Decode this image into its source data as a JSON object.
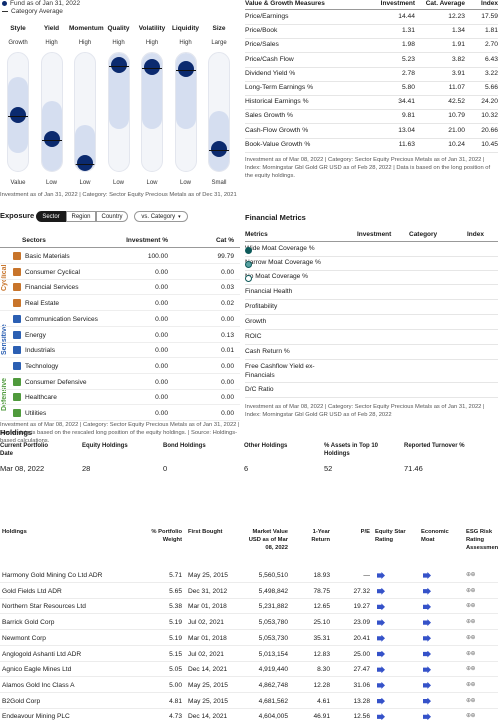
{
  "style_box": {
    "legend": {
      "fund_label": "Fund as of Jan 31, 2022",
      "category_label": "Category Average"
    },
    "factors": [
      {
        "name": "Style",
        "top": "Growth",
        "bottom": "Value",
        "level": 0.52
      },
      {
        "name": "Yield",
        "top": "High",
        "bottom": "Low",
        "level": 0.72
      },
      {
        "name": "Momentum",
        "top": "High",
        "bottom": "Low",
        "level": 0.92
      },
      {
        "name": "Quality",
        "top": "High",
        "bottom": "Low",
        "level": 0.1
      },
      {
        "name": "Volatility",
        "top": "High",
        "bottom": "Low",
        "level": 0.12
      },
      {
        "name": "Liquidity",
        "top": "High",
        "bottom": "Low",
        "level": 0.13
      },
      {
        "name": "Size",
        "top": "Large",
        "bottom": "Small",
        "level": 0.8
      }
    ],
    "caption": "Investment as of Jan 31, 2022 | Category: Sector Equity Precious Metals as of Dec 31, 2021"
  },
  "value_growth": {
    "headers": {
      "measure": "Value & Growth Measures",
      "investment": "Investment",
      "category": "Cat. Average",
      "index": "Index"
    },
    "rows": [
      {
        "label": "Price/Earnings",
        "inv": "14.44",
        "cat": "12.23",
        "idx": "17.59"
      },
      {
        "label": "Price/Book",
        "inv": "1.31",
        "cat": "1.34",
        "idx": "1.81"
      },
      {
        "label": "Price/Sales",
        "inv": "1.98",
        "cat": "1.91",
        "idx": "2.70"
      },
      {
        "label": "Price/Cash Flow",
        "inv": "5.23",
        "cat": "3.82",
        "idx": "6.43"
      },
      {
        "label": "Dividend Yield %",
        "inv": "2.78",
        "cat": "3.91",
        "idx": "3.22"
      },
      {
        "label": "Long-Term Earnings %",
        "inv": "5.80",
        "cat": "11.07",
        "idx": "5.66"
      },
      {
        "label": "Historical Earnings %",
        "inv": "34.41",
        "cat": "42.52",
        "idx": "24.20"
      },
      {
        "label": "Sales Growth %",
        "inv": "9.81",
        "cat": "10.79",
        "idx": "10.32"
      },
      {
        "label": "Cash-Flow Growth %",
        "inv": "13.04",
        "cat": "21.00",
        "idx": "20.66"
      },
      {
        "label": "Book-Value Growth %",
        "inv": "11.63",
        "cat": "10.24",
        "idx": "10.45"
      }
    ],
    "caption": "Investment as of Mar 08, 2022 | Category: Sector Equity Precious Metals as of Jan 31, 2022 | Index: Morningstar Gbl Gold GR USD as of Feb 28, 2022 | Data is based on the long position of the equity holdings."
  },
  "exposure": {
    "title": "Exposure",
    "tabs": [
      "Sector",
      "Region",
      "Country"
    ],
    "compare": "vs. Category",
    "headers": {
      "sectors": "Sectors",
      "investment": "Investment %",
      "category": "Cat %"
    },
    "groups": [
      "Cyclical",
      "Sensitive",
      "Defensive"
    ],
    "rows": [
      {
        "name": "Basic Materials",
        "inv": "100.00",
        "cat": "99.79",
        "color": "#c8742a"
      },
      {
        "name": "Consumer Cyclical",
        "inv": "0.00",
        "cat": "0.00",
        "color": "#c8742a"
      },
      {
        "name": "Financial Services",
        "inv": "0.00",
        "cat": "0.03",
        "color": "#c8742a"
      },
      {
        "name": "Real Estate",
        "inv": "0.00",
        "cat": "0.02",
        "color": "#c8742a"
      },
      {
        "name": "Communication Services",
        "inv": "0.00",
        "cat": "0.00",
        "color": "#2b5fb3"
      },
      {
        "name": "Energy",
        "inv": "0.00",
        "cat": "0.13",
        "color": "#2b5fb3"
      },
      {
        "name": "Industrials",
        "inv": "0.00",
        "cat": "0.01",
        "color": "#2b5fb3"
      },
      {
        "name": "Technology",
        "inv": "0.00",
        "cat": "0.00",
        "color": "#2b5fb3"
      },
      {
        "name": "Consumer Defensive",
        "inv": "0.00",
        "cat": "0.00",
        "color": "#4f9a3c"
      },
      {
        "name": "Healthcare",
        "inv": "0.00",
        "cat": "0.00",
        "color": "#4f9a3c"
      },
      {
        "name": "Utilities",
        "inv": "0.00",
        "cat": "0.00",
        "color": "#4f9a3c"
      }
    ],
    "caption": "Investment as of Mar 08, 2022 | Category: Sector Equity Precious Metals as of Jan 31, 2022 | Sector data is based on the rescaled long position of the equity holdings. | Source: Holdings-based calculations."
  },
  "financial_metrics": {
    "title": "Financial Metrics",
    "headers": {
      "metrics": "Metrics",
      "investment": "Investment",
      "category": "Category",
      "index": "Index"
    },
    "rows": [
      {
        "label": "Wide Moat Coverage %",
        "dot": "#0e5b5b"
      },
      {
        "label": "Narrow Moat Coverage %",
        "dot": "#5aa3a3"
      },
      {
        "label": "No Moat Coverage %",
        "dot": "#ffffff"
      },
      {
        "label": "Financial Health"
      },
      {
        "label": "Profitability"
      },
      {
        "label": "Growth"
      },
      {
        "label": "ROIC"
      },
      {
        "label": "Cash Return %"
      },
      {
        "label": "Free Cashflow Yield ex-Financials"
      },
      {
        "label": "D/C Ratio"
      }
    ],
    "caption": "Investment as of Mar 08, 2022 | Category: Sector Equity Precious Metals as of Jan 31, 2022 | Index: Morningstar Gbl Gold GR USD as of Feb 28, 2022"
  },
  "holdings_summary": {
    "title": "Holdings",
    "items": [
      {
        "label": "Current Portfolio Date",
        "value": "Mar 08, 2022"
      },
      {
        "label": "Equity Holdings",
        "value": "28"
      },
      {
        "label": "Bond Holdings",
        "value": "0"
      },
      {
        "label": "Other Holdings",
        "value": "6"
      },
      {
        "label": "% Assets in Top 10 Holdings",
        "value": "52"
      },
      {
        "label": "Reported Turnover %",
        "value": "71.46"
      }
    ]
  },
  "holdings": {
    "headers": {
      "name": "Holdings",
      "weight": "% Portfolio Weight",
      "first_bought": "First Bought",
      "market_value": "Market Value USD as of Mar 08, 2022",
      "return": "1-Year Return",
      "pe": "P/E",
      "style": "Equity Star Rating",
      "moat": "Economic Moat",
      "esg": "ESG Risk Rating Assessment"
    },
    "rows": [
      {
        "name": "Harmony Gold Mining Co Ltd ADR",
        "weight": "5.71",
        "bought": "May 25, 2015",
        "mv": "5,560,510",
        "ret": "18.93",
        "pe": "—"
      },
      {
        "name": "Gold Fields Ltd ADR",
        "weight": "5.65",
        "bought": "Dec 31, 2012",
        "mv": "5,498,842",
        "ret": "78.75",
        "pe": "27.32"
      },
      {
        "name": "Northern Star Resources Ltd",
        "weight": "5.38",
        "bought": "Mar 01, 2018",
        "mv": "5,231,882",
        "ret": "12.65",
        "pe": "19.27"
      },
      {
        "name": "Barrick Gold Corp",
        "weight": "5.19",
        "bought": "Jul 02, 2021",
        "mv": "5,053,780",
        "ret": "25.10",
        "pe": "23.09"
      },
      {
        "name": "Newmont Corp",
        "weight": "5.19",
        "bought": "Mar 01, 2018",
        "mv": "5,053,730",
        "ret": "35.31",
        "pe": "20.41"
      },
      {
        "name": "Anglogold Ashanti Ltd ADR",
        "weight": "5.15",
        "bought": "Jul 02, 2021",
        "mv": "5,013,154",
        "ret": "12.83",
        "pe": "25.00"
      },
      {
        "name": "Agnico Eagle Mines Ltd",
        "weight": "5.05",
        "bought": "Dec 14, 2021",
        "mv": "4,919,440",
        "ret": "8.30",
        "pe": "27.47"
      },
      {
        "name": "Alamos Gold Inc Class A",
        "weight": "5.00",
        "bought": "May 25, 2015",
        "mv": "4,862,748",
        "ret": "12.28",
        "pe": "31.06"
      },
      {
        "name": "B2Gold Corp",
        "weight": "4.81",
        "bought": "May 25, 2015",
        "mv": "4,681,562",
        "ret": "4.61",
        "pe": "13.28"
      },
      {
        "name": "Endeavour Mining PLC",
        "weight": "4.73",
        "bought": "Dec 14, 2021",
        "mv": "4,604,005",
        "ret": "46.91",
        "pe": "12.56"
      }
    ]
  }
}
